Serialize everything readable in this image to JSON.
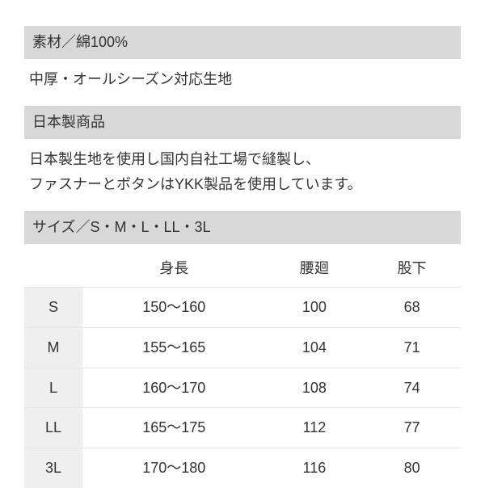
{
  "material": {
    "header": "素材／綿100%",
    "text": "中厚・オールシーズン対応生地"
  },
  "made_in_japan": {
    "header": "日本製商品",
    "text_line1": "日本製生地を使用し国内自社工場で縫製し、",
    "text_line2": "ファスナーとボタンはYKK製品を使用しています。"
  },
  "size": {
    "header": "サイズ／S・M・L・LL・3L",
    "columns": {
      "size": "",
      "height": "身長",
      "waist": "腰廻",
      "inseam": "股下"
    },
    "rows": [
      {
        "size": "S",
        "height": "150～160",
        "waist": "100",
        "inseam": "68"
      },
      {
        "size": "M",
        "height": "155～165",
        "waist": "104",
        "inseam": "71"
      },
      {
        "size": "L",
        "height": "160～170",
        "waist": "108",
        "inseam": "74"
      },
      {
        "size": "LL",
        "height": "165～175",
        "waist": "112",
        "inseam": "77"
      },
      {
        "size": "3L",
        "height": "170～180",
        "waist": "116",
        "inseam": "80"
      }
    ]
  },
  "colors": {
    "header_bg": "#d8d8d8",
    "size_cell_bg": "#efefef",
    "row_border": "#e6e6e6",
    "text": "#333333",
    "page_bg": "#ffffff"
  },
  "type": "table"
}
